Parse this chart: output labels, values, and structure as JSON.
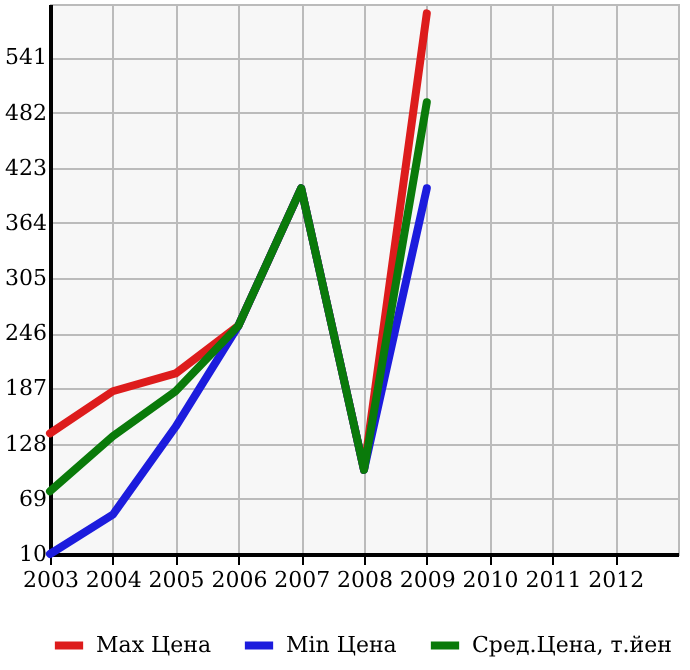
{
  "chart_data": {
    "type": "line",
    "x": [
      2003,
      2004,
      2005,
      2006,
      2007,
      2008,
      2009
    ],
    "series": [
      {
        "name": "Max Цена",
        "color": "#dd1c1c",
        "values": [
          139,
          184,
          203,
          254,
          401,
          100,
          588
        ]
      },
      {
        "name": "Min Цена",
        "color": "#1c1cdd",
        "values": [
          10,
          52,
          146,
          254,
          401,
          100,
          401
        ]
      },
      {
        "name": "Сред.Цена, т.йен",
        "color": "#0a7a0a",
        "values": [
          77,
          136,
          184,
          254,
          401,
          100,
          493
        ]
      }
    ],
    "xlim": [
      2003,
      2013
    ],
    "xticks": [
      2003,
      2004,
      2005,
      2006,
      2007,
      2008,
      2009,
      2010,
      2011,
      2012
    ],
    "ylim": [
      10,
      598
    ],
    "yticks": [
      10,
      69,
      128,
      187,
      246,
      305,
      364,
      423,
      482,
      541
    ],
    "grid": true,
    "legend": "bottom",
    "marker": "none",
    "line_style": "solid"
  }
}
